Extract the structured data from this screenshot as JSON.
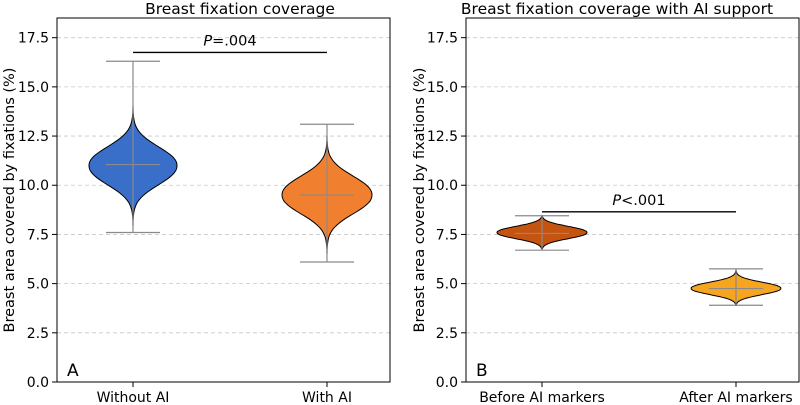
{
  "chart_data": [
    {
      "panel": "A",
      "type": "violin",
      "title": "Breast fixation coverage",
      "ylabel": "Breast area covered by fixations (%)",
      "xlabel": "",
      "ylim": [
        0,
        18.5
      ],
      "yticks": [
        "0.0",
        "2.5",
        "5.0",
        "7.5",
        "10.0",
        "12.5",
        "15.0",
        "17.5"
      ],
      "grid": "horizontal dashed",
      "categories": [
        "Without AI",
        "With AI"
      ],
      "series": [
        {
          "name": "Without AI",
          "color": "#3a6fc9",
          "min": 7.6,
          "max": 16.3,
          "median": 11.05,
          "mean": 11.05,
          "peak_center": 10.95,
          "peak_halfwidth": 0.95
        },
        {
          "name": "With AI",
          "color": "#f07f2f",
          "min": 6.1,
          "max": 13.1,
          "median": 9.5,
          "mean": 9.5,
          "peak_center": 9.5,
          "peak_halfwidth": 0.95
        }
      ],
      "annotation": {
        "prefix": "P",
        "value": "=.004",
        "y": 16.75,
        "from": "Without AI",
        "to": "With AI"
      }
    },
    {
      "panel": "B",
      "type": "violin",
      "title": "Breast fixation coverage with AI support",
      "ylabel": "Breast area covered by fixations (%)",
      "xlabel": "",
      "ylim": [
        0,
        18.5
      ],
      "yticks": [
        "0.0",
        "2.5",
        "5.0",
        "7.5",
        "10.0",
        "12.5",
        "15.0",
        "17.5"
      ],
      "grid": "horizontal dashed",
      "categories": [
        "Before AI markers",
        "After AI markers"
      ],
      "series": [
        {
          "name": "Before AI markers",
          "color": "#c55410",
          "min": 6.7,
          "max": 8.45,
          "median": 7.55,
          "mean": 7.55,
          "peak_center": 7.6,
          "peak_halfwidth": 0.32
        },
        {
          "name": "After AI markers",
          "color": "#f7a521",
          "min": 3.9,
          "max": 5.75,
          "median": 4.75,
          "mean": 4.75,
          "peak_center": 4.75,
          "peak_halfwidth": 0.32
        }
      ],
      "annotation": {
        "prefix": "P",
        "value": "<.001",
        "y": 8.65,
        "from": "Before AI markers",
        "to": "After AI markers"
      }
    }
  ]
}
